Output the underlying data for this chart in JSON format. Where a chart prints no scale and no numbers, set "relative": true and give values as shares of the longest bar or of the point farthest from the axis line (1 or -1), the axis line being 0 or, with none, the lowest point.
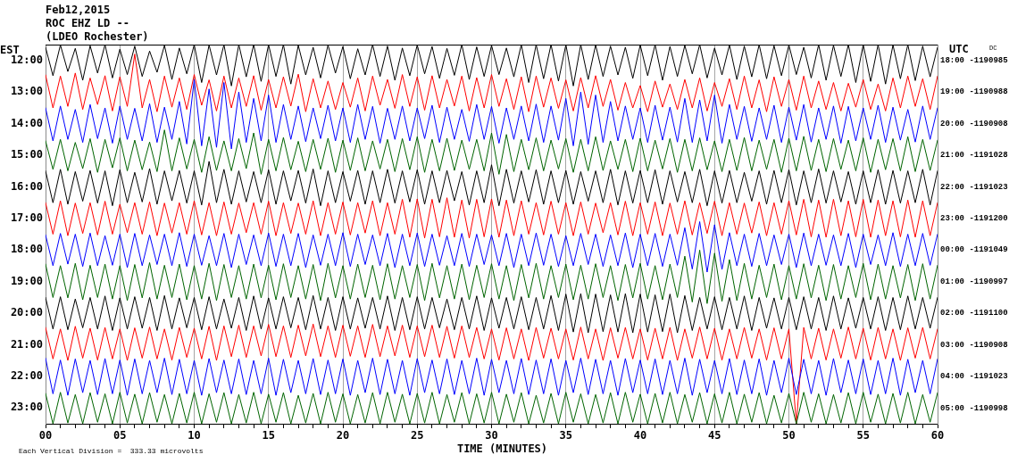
{
  "chart_data": {
    "type": "line",
    "relative": true,
    "title": "Feb12,2015",
    "subtitle": "ROC EHZ LD --\n(LDEO Rochester)",
    "xlabel": "TIME (MINUTES)",
    "ylabel": "EST",
    "y2label": "UTC",
    "y3label": "DC",
    "annotations": [
      "Each Vertical Division =  333.33 microvolts"
    ],
    "grid": "x",
    "marker": "none",
    "line_style": "solid",
    "xlim": [
      0,
      60
    ],
    "xticks": [
      {
        "value": 0,
        "label": "00"
      },
      {
        "value": 1,
        "label": null
      },
      {
        "value": 2,
        "label": null
      },
      {
        "value": 3,
        "label": null
      },
      {
        "value": 4,
        "label": null
      },
      {
        "value": 5,
        "label": "05"
      },
      {
        "value": 6,
        "label": null
      },
      {
        "value": 7,
        "label": null
      },
      {
        "value": 8,
        "label": null
      },
      {
        "value": 9,
        "label": null
      },
      10,
      {
        "value": 11,
        "label": null
      },
      {
        "value": 12,
        "label": null
      },
      {
        "value": 13,
        "label": null
      },
      {
        "value": 14,
        "label": null
      },
      15,
      {
        "value": 16,
        "label": null
      },
      {
        "value": 17,
        "label": null
      },
      {
        "value": 18,
        "label": null
      },
      {
        "value": 19,
        "label": null
      },
      20,
      {
        "value": 21,
        "label": null
      },
      {
        "value": 22,
        "label": null
      },
      {
        "value": 23,
        "label": null
      },
      {
        "value": 24,
        "label": null
      },
      25,
      {
        "value": 26,
        "label": null
      },
      {
        "value": 27,
        "label": null
      },
      {
        "value": 28,
        "label": null
      },
      {
        "value": 29,
        "label": null
      },
      30,
      {
        "value": 31,
        "label": null
      },
      {
        "value": 32,
        "label": null
      },
      {
        "value": 33,
        "label": null
      },
      {
        "value": 34,
        "label": null
      },
      35,
      {
        "value": 36,
        "label": null
      },
      {
        "value": 37,
        "label": null
      },
      {
        "value": 38,
        "label": null
      },
      {
        "value": 39,
        "label": null
      },
      40,
      {
        "value": 41,
        "label": null
      },
      {
        "value": 42,
        "label": null
      },
      {
        "value": 43,
        "label": null
      },
      {
        "value": 44,
        "label": null
      },
      45,
      {
        "value": 46,
        "label": null
      },
      {
        "value": 47,
        "label": null
      },
      {
        "value": 48,
        "label": null
      },
      {
        "value": 49,
        "label": null
      },
      50,
      {
        "value": 51,
        "label": null
      },
      {
        "value": 52,
        "label": null
      },
      {
        "value": 53,
        "label": null
      },
      {
        "value": 54,
        "label": null
      },
      55,
      {
        "value": 56,
        "label": null
      },
      {
        "value": 57,
        "label": null
      },
      {
        "value": 58,
        "label": null
      },
      {
        "value": 59,
        "label": null
      },
      60
    ],
    "y_categories": [
      "12:00",
      "13:00",
      "14:00",
      "15:00",
      "16:00",
      "17:00",
      "18:00",
      "19:00",
      "20:00",
      "21:00",
      "22:00",
      "23:00"
    ],
    "y2_categories": [
      "18:00 -1190985",
      "19:00 -1190988",
      "20:00 -1190908",
      "21:00 -1191028",
      "22:00 -1191023",
      "23:00 -1191200",
      "00:00 -1191049",
      "01:00 -1190997",
      "02:00 -1191100",
      "03:00 -1190908",
      "04:00 -1191023",
      "05:00 -1190998"
    ],
    "x": [
      0,
      0.5,
      1,
      1.5,
      2,
      2.5,
      3,
      3.5,
      4,
      4.5,
      5,
      5.5,
      6,
      6.5,
      7,
      7.5,
      8,
      8.5,
      9,
      9.5,
      10,
      10.5,
      11,
      11.5,
      12,
      12.5,
      13,
      13.5,
      14,
      14.5,
      15,
      15.5,
      16,
      16.5,
      17,
      17.5,
      18,
      18.5,
      19,
      19.5,
      20,
      20.5,
      21,
      21.5,
      22,
      22.5,
      23,
      23.5,
      24,
      24.5,
      25,
      25.5,
      26,
      26.5,
      27,
      27.5,
      28,
      28.5,
      29,
      29.5,
      30,
      30.5,
      31,
      31.5,
      32,
      32.5,
      33,
      33.5,
      34,
      34.5,
      35,
      35.5,
      36,
      36.5,
      37,
      37.5,
      38,
      38.5,
      39,
      39.5,
      40,
      40.5,
      41,
      41.5,
      42,
      42.5,
      43,
      43.5,
      44,
      44.5,
      45,
      45.5,
      46,
      46.5,
      47,
      47.5,
      48,
      48.5,
      49,
      49.5,
      50,
      50.5,
      51,
      51.5,
      52,
      52.5,
      53,
      53.5,
      54,
      54.5,
      55,
      55.5,
      56,
      56.5,
      57,
      57.5,
      58,
      58.5,
      59,
      59.5,
      60
    ],
    "series": [
      {
        "color": "#000000",
        "values": [
          0.993,
          0.918,
          0.999,
          0.929,
          0.99,
          0.906,
          0.997,
          0.925,
          1,
          0.912,
          0.988,
          0.921,
          0.996,
          0.916,
          0.983,
          0.927,
          0.998,
          0.908,
          0.991,
          0.923,
          1,
          0.9,
          0.999,
          0.92,
          1,
          0.891,
          1,
          0.915,
          1,
          0.903,
          1,
          0.916,
          1,
          0.896,
          0.998,
          0.92,
          0.993,
          0.912,
          0.999,
          0.925,
          0.995,
          0.91,
          0.989,
          0.92,
          1,
          0.916,
          0.996,
          0.906,
          0.991,
          0.918,
          0.999,
          0.923,
          0.995,
          0.911,
          0.99,
          0.919,
          1,
          0.908,
          0.994,
          0.916,
          0.998,
          0.921,
          0.991,
          0.915,
          1,
          0.9,
          1,
          0.91,
          1,
          0.904,
          1,
          0.891,
          1,
          0.908,
          0.999,
          0.916,
          0.996,
          0.92,
          0.993,
          0.911,
          0.999,
          0.918,
          1,
          0.906,
          0.995,
          0.916,
          0.998,
          0.923,
          1,
          0.912,
          0.991,
          0.92,
          0.999,
          0.908,
          0.996,
          0.915,
          1,
          0.91,
          0.997,
          0.918,
          0.999,
          0.921,
          0.993,
          0.912,
          1,
          0.906,
          0.998,
          0.916,
          1,
          0.9,
          1,
          0.903,
          1,
          0.896,
          0.999,
          0.91,
          1,
          0.905,
          0.996,
          0.915,
          0.993
        ]
      },
      {
        "color": "#ff0000",
        "values": [
          0.92,
          0.833,
          0.917,
          0.837,
          0.925,
          0.829,
          0.912,
          0.842,
          0.918,
          0.825,
          0.915,
          0.837,
          0.975,
          0.833,
          0.908,
          0.823,
          0.917,
          0.835,
          0.912,
          0.829,
          0.921,
          0.84,
          0.907,
          0.825,
          0.917,
          0.833,
          0.912,
          0.837,
          0.918,
          0.827,
          0.908,
          0.833,
          0.915,
          0.838,
          0.922,
          0.823,
          0.91,
          0.833,
          0.904,
          0.829,
          0.9,
          0.835,
          0.912,
          0.825,
          0.917,
          0.84,
          0.908,
          0.832,
          0.921,
          0.837,
          0.915,
          0.827,
          0.918,
          0.833,
          0.908,
          0.838,
          0.917,
          0.825,
          0.913,
          0.833,
          0.921,
          0.837,
          0.91,
          0.829,
          0.915,
          0.823,
          0.917,
          0.835,
          0.912,
          0.832,
          0.907,
          0.825,
          0.913,
          0.833,
          0.918,
          0.837,
          0.908,
          0.827,
          0.9,
          0.833,
          0.892,
          0.823,
          0.904,
          0.835,
          0.896,
          0.829,
          0.908,
          0.833,
          0.912,
          0.825,
          0.9,
          0.837,
          0.91,
          0.829,
          0.917,
          0.833,
          0.907,
          0.823,
          0.915,
          0.837,
          0.908,
          0.827,
          0.917,
          0.833,
          0.904,
          0.829,
          0.9,
          0.825,
          0.898,
          0.835,
          0.908,
          0.829,
          0.896,
          0.825,
          0.912,
          0.833,
          0.917,
          0.837,
          0.91,
          0.829,
          0.917
        ]
      },
      {
        "color": "#0000ff",
        "values": [
          0.833,
          0.746,
          0.838,
          0.75,
          0.829,
          0.742,
          0.842,
          0.752,
          0.833,
          0.74,
          0.838,
          0.75,
          0.832,
          0.746,
          0.844,
          0.742,
          0.835,
          0.75,
          0.85,
          0.738,
          0.908,
          0.733,
          0.883,
          0.729,
          0.9,
          0.725,
          0.875,
          0.742,
          0.858,
          0.746,
          0.867,
          0.742,
          0.842,
          0.75,
          0.838,
          0.744,
          0.833,
          0.752,
          0.84,
          0.746,
          0.833,
          0.742,
          0.842,
          0.75,
          0.837,
          0.74,
          0.832,
          0.75,
          0.838,
          0.746,
          0.833,
          0.752,
          0.84,
          0.742,
          0.835,
          0.75,
          0.829,
          0.745,
          0.842,
          0.75,
          0.837,
          0.74,
          0.833,
          0.75,
          0.838,
          0.746,
          0.843,
          0.742,
          0.838,
          0.748,
          0.858,
          0.733,
          0.875,
          0.737,
          0.867,
          0.742,
          0.85,
          0.746,
          0.838,
          0.75,
          0.833,
          0.742,
          0.84,
          0.748,
          0.835,
          0.743,
          0.858,
          0.742,
          0.854,
          0.746,
          0.867,
          0.74,
          0.842,
          0.75,
          0.837,
          0.745,
          0.833,
          0.75,
          0.84,
          0.742,
          0.835,
          0.748,
          0.842,
          0.743,
          0.833,
          0.75,
          0.838,
          0.74,
          0.837,
          0.746,
          0.833,
          0.75,
          0.84,
          0.742,
          0.835,
          0.748,
          0.829,
          0.743,
          0.838,
          0.75,
          0.833
        ]
      },
      {
        "color": "#006400",
        "values": [
          0.746,
          0.671,
          0.75,
          0.667,
          0.742,
          0.673,
          0.752,
          0.663,
          0.75,
          0.675,
          0.754,
          0.667,
          0.748,
          0.67,
          0.743,
          0.665,
          0.775,
          0.667,
          0.754,
          0.672,
          0.75,
          0.663,
          0.757,
          0.668,
          0.746,
          0.667,
          0.752,
          0.673,
          0.767,
          0.658,
          0.75,
          0.667,
          0.755,
          0.67,
          0.745,
          0.665,
          0.75,
          0.671,
          0.753,
          0.663,
          0.748,
          0.668,
          0.754,
          0.667,
          0.746,
          0.672,
          0.75,
          0.665,
          0.752,
          0.67,
          0.757,
          0.663,
          0.75,
          0.667,
          0.753,
          0.668,
          0.748,
          0.671,
          0.75,
          0.667,
          0.767,
          0.658,
          0.763,
          0.665,
          0.75,
          0.67,
          0.754,
          0.667,
          0.748,
          0.672,
          0.752,
          0.663,
          0.75,
          0.667,
          0.757,
          0.668,
          0.746,
          0.671,
          0.75,
          0.665,
          0.753,
          0.667,
          0.748,
          0.672,
          0.752,
          0.663,
          0.75,
          0.667,
          0.754,
          0.67,
          0.746,
          0.665,
          0.75,
          0.668,
          0.755,
          0.667,
          0.748,
          0.671,
          0.75,
          0.663,
          0.753,
          0.667,
          0.758,
          0.668,
          0.75,
          0.665,
          0.752,
          0.671,
          0.748,
          0.667,
          0.754,
          0.663,
          0.75,
          0.67,
          0.752,
          0.667,
          0.757,
          0.665,
          0.75,
          0.668,
          0.748
        ]
      },
      {
        "color": "#000000",
        "values": [
          0.667,
          0.583,
          0.671,
          0.579,
          0.665,
          0.587,
          0.668,
          0.582,
          0.667,
          0.575,
          0.67,
          0.583,
          0.663,
          0.585,
          0.673,
          0.579,
          0.667,
          0.588,
          0.668,
          0.582,
          0.667,
          0.577,
          0.692,
          0.583,
          0.671,
          0.579,
          0.667,
          0.585,
          0.665,
          0.583,
          0.67,
          0.579,
          0.667,
          0.588,
          0.668,
          0.582,
          0.672,
          0.575,
          0.667,
          0.583,
          0.665,
          0.587,
          0.668,
          0.579,
          0.667,
          0.583,
          0.671,
          0.582,
          0.667,
          0.585,
          0.67,
          0.579,
          0.667,
          0.583,
          0.668,
          0.588,
          0.665,
          0.577,
          0.667,
          0.583,
          0.683,
          0.575,
          0.671,
          0.582,
          0.667,
          0.585,
          0.67,
          0.579,
          0.667,
          0.583,
          0.668,
          0.579,
          0.665,
          0.587,
          0.667,
          0.583,
          0.671,
          0.577,
          0.667,
          0.582,
          0.668,
          0.583,
          0.67,
          0.579,
          0.667,
          0.585,
          0.665,
          0.583,
          0.671,
          0.575,
          0.667,
          0.582,
          0.668,
          0.583,
          0.663,
          0.587,
          0.667,
          0.579,
          0.668,
          0.583,
          0.67,
          0.577,
          0.667,
          0.583,
          0.672,
          0.582,
          0.667,
          0.585,
          0.665,
          0.579,
          0.667,
          0.583,
          0.67,
          0.579,
          0.668,
          0.582,
          0.667,
          0.583,
          0.671,
          0.577,
          0.667
        ]
      },
      {
        "color": "#ff0000",
        "values": [
          0.583,
          0.5,
          0.588,
          0.496,
          0.582,
          0.502,
          0.583,
          0.498,
          0.587,
          0.5,
          0.579,
          0.504,
          0.583,
          0.5,
          0.585,
          0.496,
          0.582,
          0.503,
          0.583,
          0.5,
          0.588,
          0.498,
          0.583,
          0.496,
          0.585,
          0.5,
          0.582,
          0.504,
          0.583,
          0.5,
          0.587,
          0.496,
          0.583,
          0.502,
          0.582,
          0.5,
          0.588,
          0.496,
          0.583,
          0.5,
          0.585,
          0.498,
          0.583,
          0.503,
          0.588,
          0.496,
          0.583,
          0.5,
          0.592,
          0.492,
          0.593,
          0.49,
          0.592,
          0.493,
          0.596,
          0.492,
          0.59,
          0.49,
          0.592,
          0.493,
          0.593,
          0.492,
          0.59,
          0.496,
          0.588,
          0.5,
          0.583,
          0.498,
          0.587,
          0.5,
          0.583,
          0.496,
          0.585,
          0.5,
          0.582,
          0.504,
          0.583,
          0.498,
          0.587,
          0.496,
          0.583,
          0.5,
          0.585,
          0.496,
          0.582,
          0.5,
          0.588,
          0.498,
          0.583,
          0.502,
          0.587,
          0.496,
          0.583,
          0.5,
          0.582,
          0.503,
          0.585,
          0.496,
          0.583,
          0.5,
          0.588,
          0.498,
          0.592,
          0.493,
          0.59,
          0.492,
          0.592,
          0.496,
          0.588,
          0.493,
          0.592,
          0.492,
          0.59,
          0.496,
          0.588,
          0.493,
          0.59,
          0.492,
          0.588,
          0.496,
          0.583
        ]
      },
      {
        "color": "#0000ff",
        "values": [
          0.498,
          0.417,
          0.502,
          0.421,
          0.5,
          0.415,
          0.503,
          0.417,
          0.496,
          0.418,
          0.5,
          0.412,
          0.502,
          0.417,
          0.498,
          0.42,
          0.5,
          0.417,
          0.504,
          0.415,
          0.5,
          0.418,
          0.496,
          0.417,
          0.502,
          0.412,
          0.5,
          0.42,
          0.498,
          0.417,
          0.503,
          0.415,
          0.5,
          0.417,
          0.502,
          0.412,
          0.498,
          0.418,
          0.5,
          0.417,
          0.504,
          0.415,
          0.5,
          0.42,
          0.498,
          0.417,
          0.502,
          0.412,
          0.5,
          0.417,
          0.503,
          0.415,
          0.5,
          0.418,
          0.496,
          0.417,
          0.502,
          0.415,
          0.5,
          0.42,
          0.498,
          0.417,
          0.502,
          0.412,
          0.5,
          0.417,
          0.503,
          0.418,
          0.5,
          0.415,
          0.496,
          0.417,
          0.502,
          0.42,
          0.5,
          0.415,
          0.498,
          0.417,
          0.503,
          0.412,
          0.5,
          0.417,
          0.502,
          0.415,
          0.5,
          0.418,
          0.517,
          0.408,
          0.533,
          0.4,
          0.525,
          0.407,
          0.504,
          0.417,
          0.5,
          0.415,
          0.502,
          0.417,
          0.498,
          0.42,
          0.5,
          0.412,
          0.503,
          0.417,
          0.5,
          0.418,
          0.498,
          0.417,
          0.502,
          0.412,
          0.5,
          0.42,
          0.498,
          0.417,
          0.504,
          0.415,
          0.5,
          0.417,
          0.502,
          0.418,
          0.5
        ]
      },
      {
        "color": "#006400",
        "values": [
          0.421,
          0.333,
          0.417,
          0.332,
          0.423,
          0.327,
          0.418,
          0.333,
          0.421,
          0.329,
          0.417,
          0.325,
          0.42,
          0.332,
          0.425,
          0.329,
          0.418,
          0.333,
          0.421,
          0.327,
          0.417,
          0.329,
          0.423,
          0.325,
          0.42,
          0.333,
          0.417,
          0.329,
          0.421,
          0.332,
          0.418,
          0.327,
          0.422,
          0.333,
          0.417,
          0.329,
          0.42,
          0.325,
          0.423,
          0.332,
          0.417,
          0.329,
          0.421,
          0.333,
          0.418,
          0.327,
          0.422,
          0.329,
          0.417,
          0.333,
          0.42,
          0.325,
          0.423,
          0.332,
          0.417,
          0.329,
          0.421,
          0.327,
          0.418,
          0.333,
          0.422,
          0.329,
          0.417,
          0.325,
          0.42,
          0.332,
          0.423,
          0.329,
          0.417,
          0.333,
          0.421,
          0.327,
          0.418,
          0.329,
          0.422,
          0.333,
          0.417,
          0.325,
          0.42,
          0.332,
          0.423,
          0.329,
          0.417,
          0.327,
          0.421,
          0.333,
          0.442,
          0.321,
          0.458,
          0.317,
          0.45,
          0.323,
          0.433,
          0.325,
          0.423,
          0.329,
          0.418,
          0.333,
          0.421,
          0.327,
          0.417,
          0.329,
          0.422,
          0.332,
          0.418,
          0.325,
          0.42,
          0.329,
          0.417,
          0.333,
          0.423,
          0.327,
          0.421,
          0.329,
          0.417,
          0.332,
          0.42,
          0.325,
          0.422,
          0.329,
          0.418
        ]
      },
      {
        "color": "#000000",
        "values": [
          0.333,
          0.25,
          0.335,
          0.248,
          0.329,
          0.253,
          0.333,
          0.25,
          0.337,
          0.246,
          0.332,
          0.25,
          0.335,
          0.252,
          0.333,
          0.246,
          0.338,
          0.25,
          0.332,
          0.253,
          0.333,
          0.248,
          0.335,
          0.25,
          0.329,
          0.252,
          0.333,
          0.246,
          0.337,
          0.25,
          0.332,
          0.25,
          0.335,
          0.253,
          0.333,
          0.248,
          0.338,
          0.25,
          0.333,
          0.246,
          0.335,
          0.25,
          0.332,
          0.252,
          0.333,
          0.25,
          0.337,
          0.246,
          0.333,
          0.248,
          0.335,
          0.25,
          0.333,
          0.253,
          0.329,
          0.248,
          0.333,
          0.25,
          0.337,
          0.246,
          0.332,
          0.252,
          0.333,
          0.25,
          0.335,
          0.248,
          0.333,
          0.25,
          0.338,
          0.246,
          0.342,
          0.242,
          0.343,
          0.24,
          0.342,
          0.243,
          0.34,
          0.242,
          0.343,
          0.24,
          0.342,
          0.242,
          0.34,
          0.243,
          0.342,
          0.24,
          0.338,
          0.246,
          0.333,
          0.25,
          0.335,
          0.248,
          0.333,
          0.25,
          0.337,
          0.246,
          0.333,
          0.252,
          0.332,
          0.25,
          0.333,
          0.248,
          0.335,
          0.25,
          0.333,
          0.246,
          0.337,
          0.25,
          0.332,
          0.252,
          0.333,
          0.25,
          0.335,
          0.246,
          0.333,
          0.248,
          0.337,
          0.25,
          0.333,
          0.252,
          0.333
        ]
      },
      {
        "color": "#ff0000",
        "values": [
          0.254,
          0.171,
          0.25,
          0.167,
          0.257,
          0.173,
          0.252,
          0.168,
          0.254,
          0.171,
          0.25,
          0.167,
          0.253,
          0.173,
          0.255,
          0.171,
          0.25,
          0.168,
          0.254,
          0.175,
          0.252,
          0.171,
          0.257,
          0.167,
          0.258,
          0.177,
          0.26,
          0.175,
          0.258,
          0.179,
          0.262,
          0.177,
          0.258,
          0.175,
          0.26,
          0.179,
          0.263,
          0.177,
          0.258,
          0.175,
          0.26,
          0.178,
          0.258,
          0.175,
          0.262,
          0.177,
          0.258,
          0.179,
          0.26,
          0.175,
          0.258,
          0.177,
          0.26,
          0.175,
          0.257,
          0.173,
          0.258,
          0.175,
          0.254,
          0.171,
          0.25,
          0.168,
          0.253,
          0.171,
          0.25,
          0.167,
          0.254,
          0.173,
          0.252,
          0.171,
          0.25,
          0.168,
          0.255,
          0.171,
          0.25,
          0.167,
          0.253,
          0.173,
          0.254,
          0.171,
          0.25,
          0.168,
          0.252,
          0.171,
          0.254,
          0.167,
          0.25,
          0.173,
          0.255,
          0.171,
          0.252,
          0.168,
          0.25,
          0.171,
          0.254,
          0.173,
          0.25,
          0.168,
          0.253,
          0.171,
          0.25,
          0,
          0.254,
          0.171,
          0.252,
          0.168,
          0.25,
          0.173,
          0.255,
          0.171,
          0.252,
          0.168,
          0.254,
          0.171,
          0.25,
          0.167,
          0.253,
          0.173,
          0.254,
          0.171,
          0.25
        ]
      },
      {
        "color": "#0000ff",
        "values": [
          0.173,
          0.079,
          0.168,
          0.075,
          0.171,
          0.082,
          0.167,
          0.077,
          0.172,
          0.079,
          0.168,
          0.075,
          0.171,
          0.079,
          0.167,
          0.082,
          0.173,
          0.077,
          0.17,
          0.079,
          0.167,
          0.075,
          0.172,
          0.082,
          0.168,
          0.079,
          0.171,
          0.077,
          0.167,
          0.079,
          0.173,
          0.075,
          0.17,
          0.082,
          0.167,
          0.079,
          0.172,
          0.077,
          0.168,
          0.079,
          0.171,
          0.075,
          0.167,
          0.082,
          0.173,
          0.077,
          0.17,
          0.079,
          0.167,
          0.075,
          0.172,
          0.082,
          0.168,
          0.079,
          0.171,
          0.077,
          0.167,
          0.079,
          0.173,
          0.075,
          0.17,
          0.082,
          0.167,
          0.079,
          0.172,
          0.077,
          0.168,
          0.079,
          0.171,
          0.075,
          0.167,
          0.082,
          0.173,
          0.077,
          0.17,
          0.079,
          0.167,
          0.075,
          0.172,
          0.082,
          0.168,
          0.079,
          0.171,
          0.077,
          0.167,
          0.079,
          0.173,
          0.075,
          0.17,
          0.082,
          0.167,
          0.079,
          0.172,
          0.077,
          0.168,
          0.079,
          0.171,
          0.075,
          0.167,
          0.082,
          0.173,
          0.077,
          0.17,
          0.079,
          0.167,
          0.075,
          0.172,
          0.082,
          0.168,
          0.079,
          0.171,
          0.077,
          0.167,
          0.079,
          0.173,
          0.075,
          0.17,
          0.082,
          0.167,
          0.079,
          0.171
        ]
      },
      {
        "color": "#006400",
        "values": [
          0.08,
          0,
          0.083,
          0.002,
          0.077,
          0,
          0.082,
          0.004,
          0.079,
          0,
          0.083,
          0.002,
          0.078,
          0,
          0.082,
          0.004,
          0.077,
          0,
          0.08,
          0.002,
          0.083,
          0,
          0.079,
          0.004,
          0.082,
          0,
          0.077,
          0.002,
          0.083,
          0,
          0.078,
          0.004,
          0.082,
          0,
          0.075,
          0.002,
          0.08,
          0,
          0.083,
          0.004,
          0.079,
          0,
          0.077,
          0.002,
          0.082,
          0,
          0.083,
          0.004,
          0.078,
          0,
          0.08,
          0.002,
          0.083,
          0,
          0.077,
          0.004,
          0.082,
          0,
          0.079,
          0.002,
          0.083,
          0,
          0.078,
          0.004,
          0.082,
          0,
          0.075,
          0.002,
          0.08,
          0,
          0.083,
          0.004,
          0.079,
          0,
          0.077,
          0.002,
          0.082,
          0,
          0.083,
          0.004,
          0.078,
          0,
          0.08,
          0.002,
          0.083,
          0,
          0.077,
          0.004,
          0.082,
          0,
          0.079,
          0.002,
          0.083,
          0,
          0.078,
          0.004,
          0.082,
          0,
          0.075,
          0.002,
          0.08,
          0,
          0.083,
          0.004,
          0.079,
          0,
          0.077,
          0.002,
          0.082,
          0,
          0.083,
          0.004,
          0.078,
          0,
          0.08,
          0.002,
          0.083,
          0,
          0.077,
          0.004,
          0.082
        ]
      }
    ]
  }
}
